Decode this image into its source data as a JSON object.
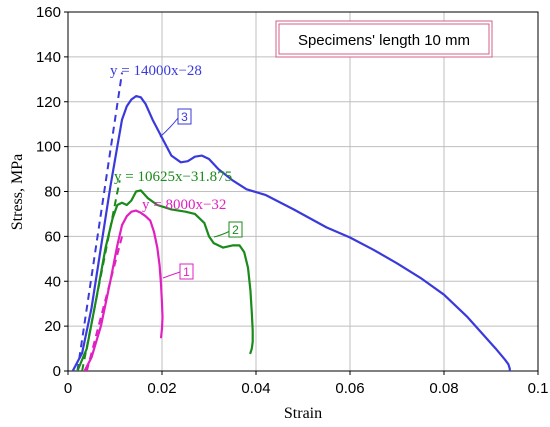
{
  "chart_data": {
    "type": "line",
    "title": "Specimens' length 10 mm",
    "xlabel": "Strain",
    "ylabel": "Stress, MPa",
    "xlim": [
      0,
      0.1
    ],
    "ylim": [
      0,
      160
    ],
    "x_ticks": [
      0,
      0.02,
      0.04,
      0.06,
      0.08,
      0.1
    ],
    "x_tick_labels": [
      "0",
      "0.02",
      "0.04",
      "0.06",
      "0.08",
      "0.1"
    ],
    "y_ticks": [
      0,
      20,
      40,
      60,
      80,
      100,
      120,
      140,
      160
    ],
    "y_tick_labels": [
      "0",
      "20",
      "40",
      "60",
      "80",
      "100",
      "120",
      "140",
      "160"
    ],
    "grid": true,
    "series": [
      {
        "name": "1",
        "color": "#e020c0",
        "x": [
          0.0035,
          0.005,
          0.007,
          0.009,
          0.0105,
          0.0115,
          0.0125,
          0.0135,
          0.0145,
          0.0155,
          0.0165,
          0.0175,
          0.0183,
          0.019,
          0.0195,
          0.0198,
          0.02,
          0.0201,
          0.02,
          0.0198
        ],
        "y": [
          0,
          6,
          20,
          40,
          56,
          65,
          69,
          71,
          71.5,
          70.5,
          69,
          67,
          62,
          55,
          47,
          38,
          30,
          24,
          19,
          15
        ]
      },
      {
        "name": "2",
        "color": "#1a8a1a",
        "x": [
          0.002,
          0.004,
          0.006,
          0.008,
          0.0095,
          0.0105,
          0.0115,
          0.0125,
          0.0135,
          0.0145,
          0.0155,
          0.017,
          0.019,
          0.022,
          0.025,
          0.027,
          0.029,
          0.03,
          0.031,
          0.033,
          0.035,
          0.0365,
          0.0375,
          0.0383,
          0.0388,
          0.0391,
          0.0393,
          0.0393,
          0.0391,
          0.0388
        ],
        "y": [
          0,
          10,
          32,
          55,
          68,
          74,
          75,
          74,
          76,
          80,
          80.5,
          77,
          74,
          72,
          71,
          70,
          66,
          60,
          57,
          55,
          56,
          56,
          53,
          46,
          36,
          26,
          18,
          13,
          10,
          8
        ]
      },
      {
        "name": "3",
        "color": "#3a3adc",
        "x": [
          0.001,
          0.003,
          0.005,
          0.007,
          0.009,
          0.0105,
          0.0115,
          0.0125,
          0.0135,
          0.0145,
          0.0155,
          0.0165,
          0.018,
          0.02,
          0.022,
          0.024,
          0.0255,
          0.027,
          0.0285,
          0.03,
          0.032,
          0.035,
          0.038,
          0.042,
          0.048,
          0.055,
          0.06,
          0.065,
          0.07,
          0.075,
          0.08,
          0.085,
          0.088,
          0.091,
          0.093,
          0.0937,
          0.094,
          0.094
        ],
        "y": [
          0,
          8,
          28,
          55,
          82,
          100,
          112,
          118,
          121,
          122.5,
          122,
          119,
          112,
          104,
          96,
          93,
          93.5,
          95.5,
          96,
          94.5,
          90,
          85,
          81,
          78.5,
          72,
          64,
          59.5,
          54,
          48,
          41.5,
          34,
          24,
          17,
          10,
          5,
          3,
          1,
          0
        ]
      }
    ],
    "trendlines": [
      {
        "label": "y = 14000x−28",
        "slope": 14000,
        "intercept": -28,
        "color": "#3a3adc",
        "x_range": [
          0.002,
          0.0115
        ]
      },
      {
        "label": "y = 10625x−31.875",
        "slope": 10625,
        "intercept": -31.875,
        "color": "#1a8a1a",
        "x_range": [
          0.003,
          0.011
        ]
      },
      {
        "label": "y = 8000x−32",
        "slope": 8000,
        "intercept": -32,
        "color": "#e020c0",
        "x_range": [
          0.004,
          0.0115
        ]
      }
    ]
  }
}
